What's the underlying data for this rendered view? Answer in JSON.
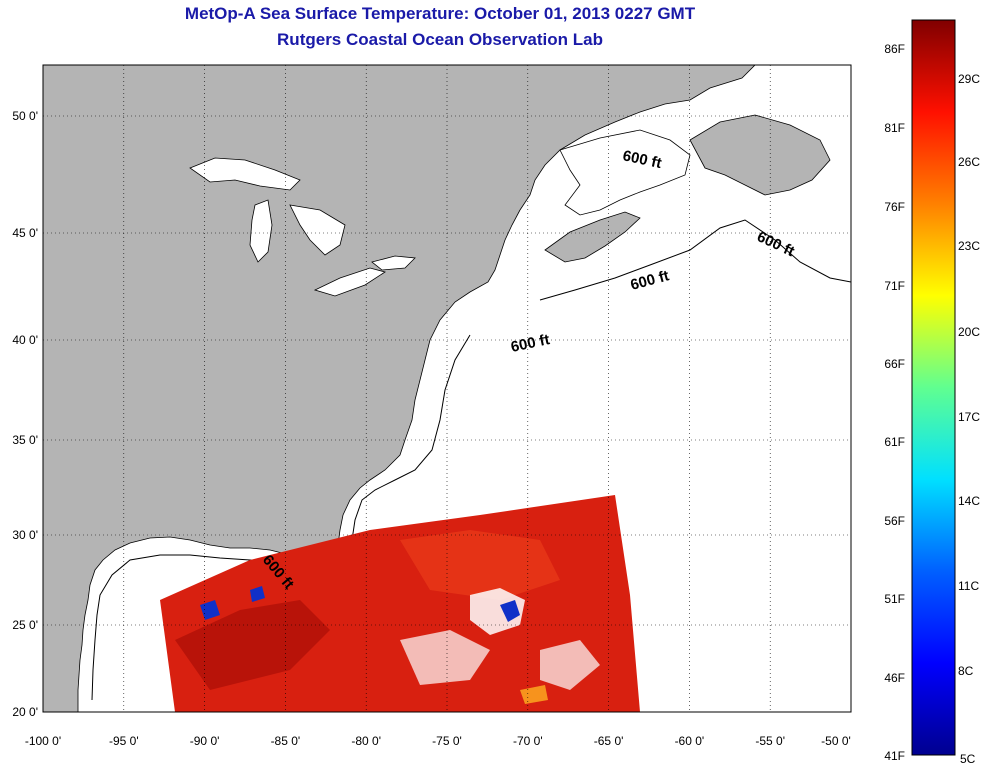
{
  "title": "MetOp-A Sea Surface Temperature:  October 01, 2013 0227 GMT",
  "subtitle": "Rutgers Coastal Ocean Observation Lab",
  "map": {
    "lon_range": [
      -100,
      -50
    ],
    "lat_range": [
      20,
      52.5
    ],
    "x_ticks": [
      "-100 0'",
      "-95 0'",
      "-90 0'",
      "-85 0'",
      "-80 0'",
      "-75 0'",
      "-70 0'",
      "-65 0'",
      "-60 0'",
      "-55 0'",
      "-50 0'"
    ],
    "y_ticks": [
      "20 0'",
      "25 0'",
      "30 0'",
      "35 0'",
      "40 0'",
      "45 0'",
      "50 0'"
    ],
    "contour_labels": [
      "600 ft",
      "600 ft",
      "600 ft",
      "600 ft",
      "600 ft"
    ],
    "land_color": "#b4b4b4",
    "ocean_color": "#ffffff",
    "grid": "dotted"
  },
  "colorbar": {
    "fahrenheit_labels": [
      "86F",
      "81F",
      "76F",
      "71F",
      "66F",
      "61F",
      "56F",
      "51F",
      "46F",
      "41F"
    ],
    "celsius_labels": [
      "29C",
      "26C",
      "23C",
      "20C",
      "17C",
      "14C",
      "11C",
      "8C",
      "5C"
    ],
    "colors": [
      "#800000",
      "#ff0000",
      "#ff8000",
      "#ffff00",
      "#80ff80",
      "#00ffff",
      "#0080ff",
      "#0000ff",
      "#00008f"
    ]
  }
}
